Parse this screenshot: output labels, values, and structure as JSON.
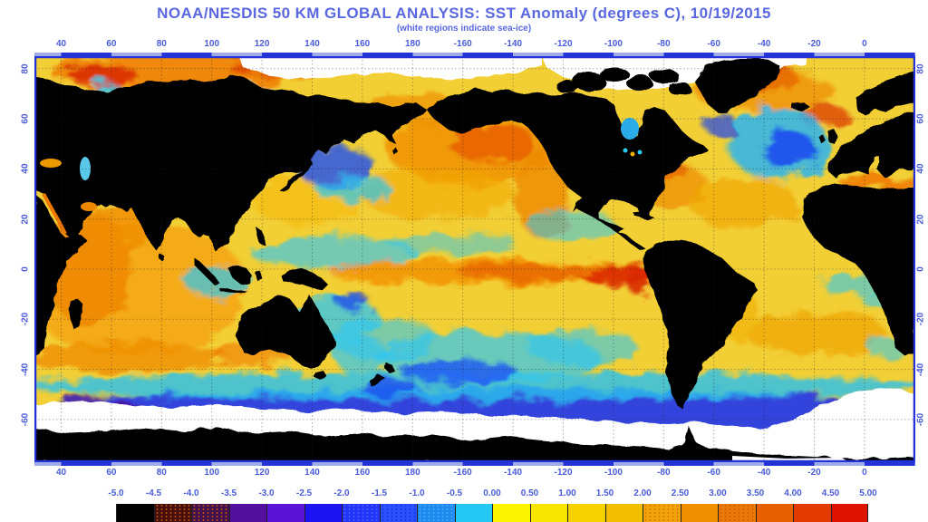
{
  "header": {
    "title": "NOAA/NESDIS 50 KM GLOBAL ANALYSIS: SST Anomaly (degrees C), 10/19/2015",
    "subtitle": "(white regions indicate sea-ice)"
  },
  "colors": {
    "title_text": "#5A68E0",
    "axis_text": "#4A5CD8",
    "axis_line": "#2433D6",
    "frame": "#2433D6",
    "ocean_base": "#F2CF35",
    "land": "#000000",
    "sea_ice": "#FFFFFF",
    "grid": "#1A1A2E"
  },
  "axes": {
    "top_lon_labels": [
      "40",
      "60",
      "80",
      "100",
      "120",
      "140",
      "160",
      "180",
      "-160",
      "-140",
      "-120",
      "-100",
      "-80",
      "-60",
      "-40",
      "-20",
      "0"
    ],
    "bottom_lon_labels": [
      "40",
      "60",
      "80",
      "100",
      "120",
      "140",
      "160",
      "180",
      "-160",
      "-140",
      "-120",
      "-100",
      "-80",
      "-60",
      "-40",
      "-20",
      "0"
    ],
    "left_lat_labels": [
      "80",
      "60",
      "40",
      "20",
      "0",
      "-20",
      "-40",
      "-60"
    ],
    "right_lat_labels": [
      "80",
      "60",
      "40",
      "20",
      "0",
      "-20",
      "-40",
      "-60"
    ]
  },
  "colorbar": {
    "units": "degrees C",
    "tick_labels": [
      "-5.0",
      "-4.5",
      "-4.0",
      "-3.5",
      "-3.0",
      "-2.5",
      "-2.0",
      "-1.5",
      "-1.0",
      "-0.5",
      "0.00",
      "0.50",
      "1.00",
      "1.50",
      "2.00",
      "2.50",
      "3.00",
      "3.50",
      "4.00",
      "4.50",
      "5.00"
    ],
    "segments": [
      {
        "color": "#000000",
        "dither": null
      },
      {
        "color": "#47100C",
        "dither": "#B85010"
      },
      {
        "color": "#43104E",
        "dither": "#B85010"
      },
      {
        "color": "#53109E",
        "dither": null
      },
      {
        "color": "#5A14D8",
        "dither": null
      },
      {
        "color": "#1E14F2",
        "dither": null
      },
      {
        "color": "#2334F8",
        "dither": "#3E62FF"
      },
      {
        "color": "#2C52FA",
        "dither": "#1830F0"
      },
      {
        "color": "#2188F0",
        "dither": "#35B5F8"
      },
      {
        "color": "#24C8F2",
        "dither": null
      },
      {
        "color": "#FAF400",
        "dither": null
      },
      {
        "color": "#F7E400",
        "dither": null
      },
      {
        "color": "#F5D200",
        "dither": null
      },
      {
        "color": "#F2BE00",
        "dither": null
      },
      {
        "color": "#F0A40A",
        "dither": "#E07800"
      },
      {
        "color": "#EE9000",
        "dither": null
      },
      {
        "color": "#EA7A08",
        "dither": "#D85800"
      },
      {
        "color": "#E66000",
        "dither": null
      },
      {
        "color": "#E23A00",
        "dither": null
      },
      {
        "color": "#DE1400",
        "dither": null
      }
    ]
  },
  "chart_data": {
    "type": "heatmap",
    "title": "NOAA/NESDIS 50 KM GLOBAL ANALYSIS: SST Anomaly (degrees C), 10/19/2015",
    "subtitle": "(white regions indicate sea-ice)",
    "projection": "equirectangular, Pacific-centered (left edge ~30E)",
    "lon_ticks": [
      40,
      60,
      80,
      100,
      120,
      140,
      160,
      180,
      -160,
      -140,
      -120,
      -100,
      -80,
      -60,
      -40,
      -20,
      0
    ],
    "lat_ticks": [
      80,
      60,
      40,
      20,
      0,
      -20,
      -40,
      -60
    ],
    "scale_min_c": -5.0,
    "scale_max_c": 5.0,
    "scale_step_c": 0.5,
    "grid": "dotted, every 20 degrees",
    "legend_position": "bottom horizontal colorbar",
    "features_read_from_map": [
      {
        "region": "equatorial eastern Pacific (El Nino tongue)",
        "approx_anomaly_c": "+2 to +3"
      },
      {
        "region": "northeast Pacific / Gulf of Alaska warm blob",
        "approx_anomaly_c": "+1.5 to +2.5"
      },
      {
        "region": "North Atlantic south of Greenland cold blob",
        "approx_anomaly_c": "-1 to -2"
      },
      {
        "region": "Southern Ocean 50S-60S circumpolar band",
        "approx_anomaly_c": "-1 to -3"
      },
      {
        "region": "Barents / Kara Seas",
        "approx_anomaly_c": "+2 to +4"
      },
      {
        "region": "Indian Ocean",
        "approx_anomaly_c": "+0.5 to +1.5"
      },
      {
        "region": "band adjacent to Antarctica and Arctic margin",
        "value": "white = sea-ice"
      }
    ]
  }
}
